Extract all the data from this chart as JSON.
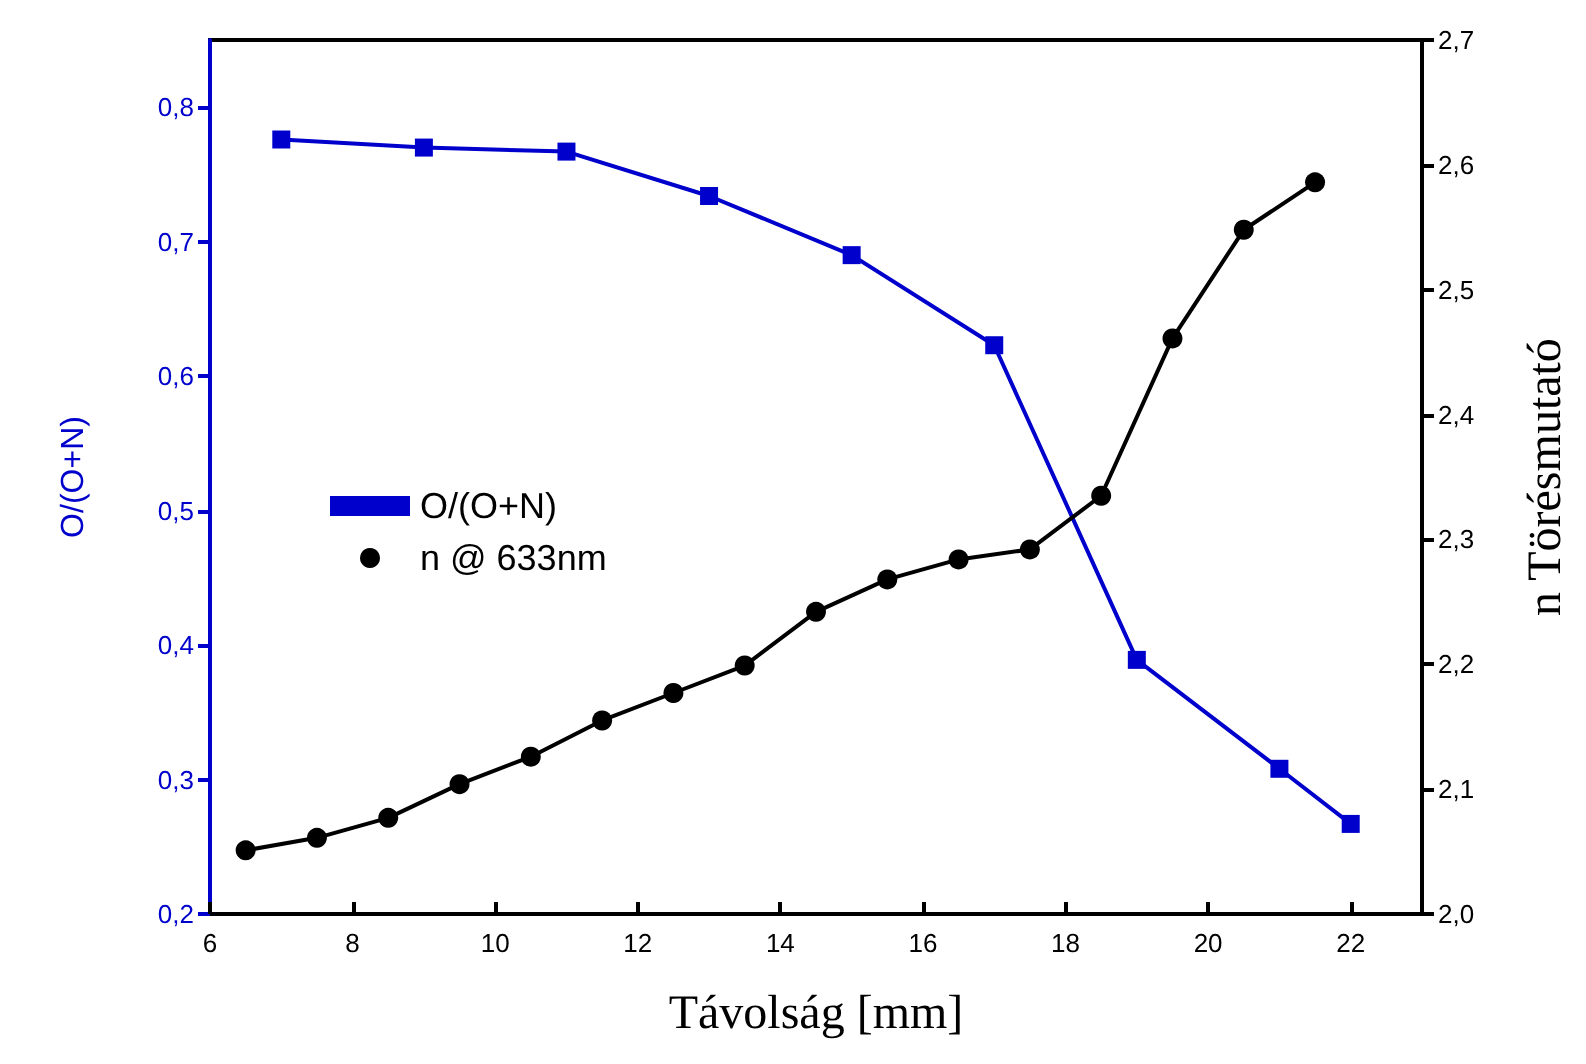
{
  "chart_data": {
    "type": "line",
    "xlabel": "Távolság [mm]",
    "ylabel": "O/(O+N)",
    "y2label": "n Törésmutató",
    "xlim": [
      6,
      23
    ],
    "xticks": [
      6,
      8,
      10,
      12,
      14,
      16,
      18,
      20,
      22
    ],
    "ylim": [
      0.2,
      0.85
    ],
    "yticks": [
      {
        "value": 0.2,
        "label": "0,2"
      },
      {
        "value": 0.3,
        "label": "0,3"
      },
      {
        "value": 0.4,
        "label": "0,4"
      },
      {
        "value": 0.5,
        "label": "0,5"
      },
      {
        "value": 0.6,
        "label": "0,6"
      },
      {
        "value": 0.7,
        "label": "0,7"
      },
      {
        "value": 0.8,
        "label": "0,8"
      }
    ],
    "y2lim": [
      2.0,
      2.7
    ],
    "y2ticks": [
      {
        "value": 2.0,
        "label": "2,0"
      },
      {
        "value": 2.1,
        "label": "2,1"
      },
      {
        "value": 2.2,
        "label": "2,2"
      },
      {
        "value": 2.3,
        "label": "2,3"
      },
      {
        "value": 2.4,
        "label": "2,4"
      },
      {
        "value": 2.5,
        "label": "2,5"
      },
      {
        "value": 2.6,
        "label": "2,6"
      },
      {
        "value": 2.7,
        "label": "2,7"
      }
    ],
    "legend": "left",
    "grid": false,
    "line_style": "solid",
    "series": [
      {
        "name": "O/(O+N)",
        "color": "#0000cc",
        "marker": "square",
        "x": [
          7,
          9,
          11,
          13,
          15,
          17,
          19,
          21,
          22
        ],
        "values": [
          0.776,
          0.77,
          0.767,
          0.734,
          0.69,
          0.623,
          0.389,
          0.308,
          0.267
        ]
      },
      {
        "name": "n @ 633nm",
        "color": "#000000",
        "marker": "circle",
        "axis": "y2",
        "x": [
          6.5,
          7.5,
          8.5,
          9.5,
          10.5,
          11.5,
          12.5,
          13.5,
          14.5,
          15.5,
          16.5,
          17.5,
          18.5,
          19.5,
          20.5,
          21.5
        ],
        "values": [
          2.051,
          2.061,
          2.077,
          2.104,
          2.126,
          2.155,
          2.177,
          2.199,
          2.242,
          2.268,
          2.284,
          2.292,
          2.335,
          2.461,
          2.548,
          2.586
        ]
      }
    ]
  }
}
